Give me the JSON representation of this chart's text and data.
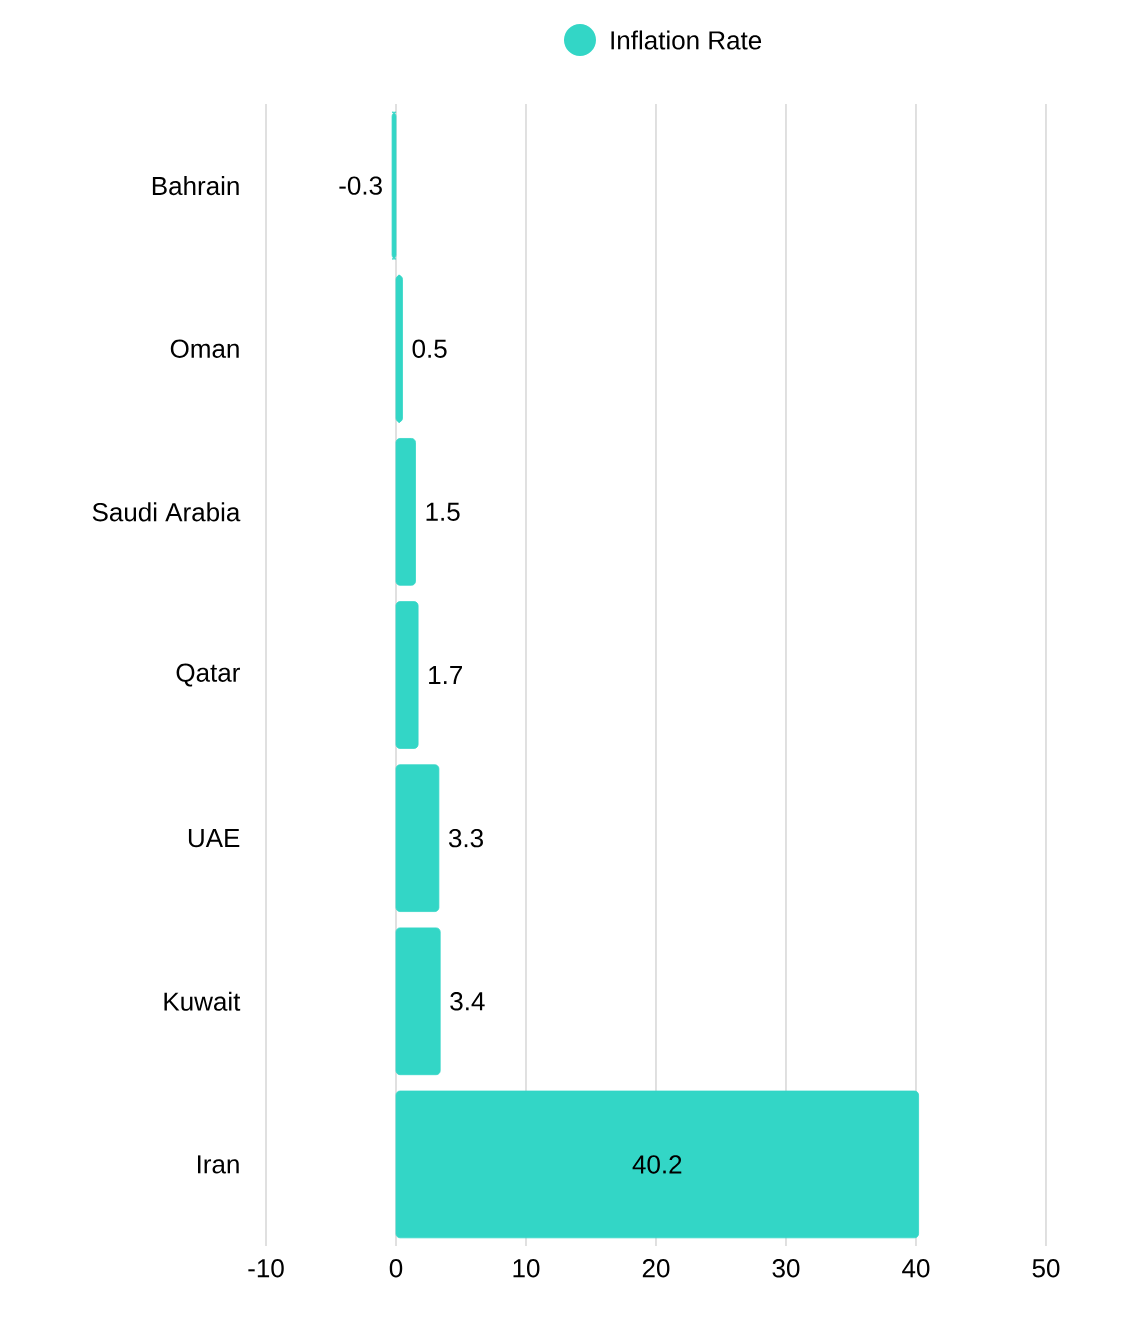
{
  "chart_data": {
    "type": "bar",
    "orientation": "horizontal",
    "categories": [
      "Bahrain",
      "Oman",
      "Saudi Arabia",
      "Qatar",
      "UAE",
      "Kuwait",
      "Iran"
    ],
    "series": [
      {
        "name": "Inflation Rate",
        "color": "#33d6c6",
        "values": [
          -0.3,
          0.5,
          1.5,
          1.7,
          3.3,
          3.4,
          40.2
        ]
      }
    ],
    "xlim": [
      -10,
      50
    ],
    "xticks": [
      -10,
      0,
      10,
      20,
      30,
      40,
      50
    ],
    "grid": "x",
    "legend": "top",
    "marker": "circle",
    "data_labels": true
  }
}
